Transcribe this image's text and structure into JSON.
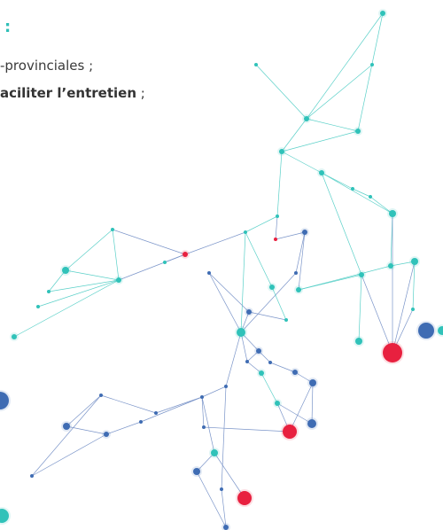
{
  "heading": {
    "suffix": ":"
  },
  "lines": [
    {
      "text": "-provinciales ;"
    },
    {
      "bold": "aciliter l’entretien",
      "rest": ";"
    }
  ]
}
